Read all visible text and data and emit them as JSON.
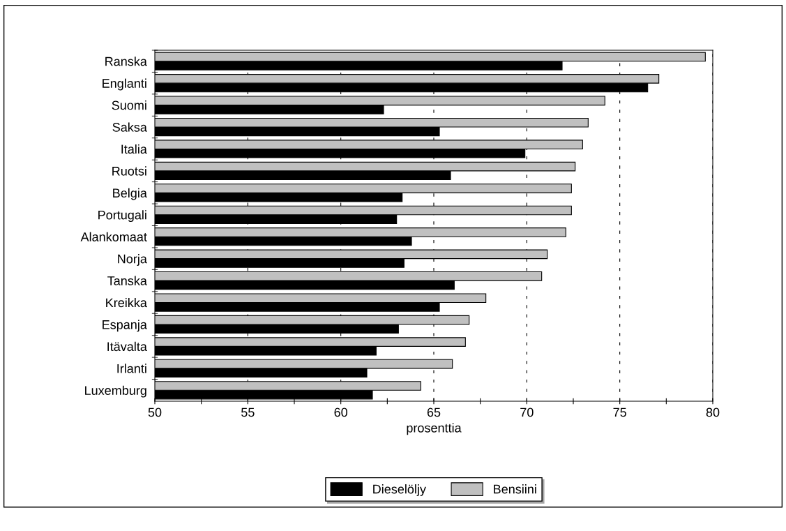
{
  "chart_data": {
    "type": "bar",
    "orientation": "horizontal",
    "xlabel": "prosenttia",
    "categories": [
      "Ranska",
      "Englanti",
      "Suomi",
      "Saksa",
      "Italia",
      "Ruotsi",
      "Belgia",
      "Portugali",
      "Alankomaat",
      "Norja",
      "Tanska",
      "Kreikka",
      "Espanja",
      "Itävalta",
      "Irlanti",
      "Luxemburg"
    ],
    "series": [
      {
        "name": "Dieselöljy",
        "color": "#000000",
        "values": [
          71.9,
          76.5,
          62.3,
          65.3,
          69.9,
          65.9,
          63.3,
          63.0,
          63.8,
          63.4,
          66.1,
          65.3,
          63.1,
          61.9,
          61.4,
          61.7
        ]
      },
      {
        "name": "Bensiini",
        "color": "#c0c0c0",
        "values": [
          79.6,
          77.1,
          74.2,
          73.3,
          73.0,
          72.6,
          72.4,
          72.4,
          72.1,
          71.1,
          70.8,
          67.8,
          66.9,
          66.7,
          66.0,
          64.3
        ]
      }
    ],
    "xlim": [
      50,
      80
    ],
    "xticks": [
      50,
      {
        "value": 52.5,
        "label": null
      },
      55,
      {
        "value": 57.5,
        "label": null
      },
      60,
      {
        "value": 62.5,
        "label": null
      },
      65,
      {
        "value": 67.5,
        "label": null
      },
      70,
      {
        "value": 72.5,
        "label": null
      },
      75,
      {
        "value": 77.5,
        "label": null
      },
      80
    ],
    "grid": "x",
    "legend": "bottom"
  }
}
